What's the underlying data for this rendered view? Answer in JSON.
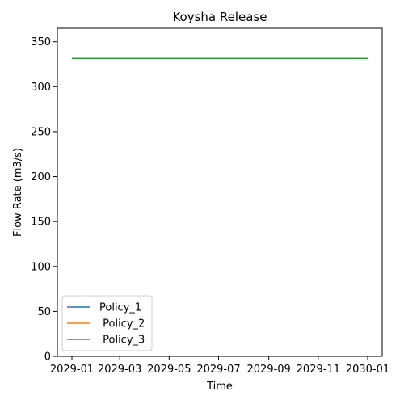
{
  "chart_data": {
    "type": "line",
    "title": "Koysha Release",
    "xlabel": "Time",
    "ylabel": "Flow Rate (m3/s)",
    "x_tick_labels": [
      "2029-01",
      "2029-03",
      "2029-05",
      "2029-07",
      "2029-09",
      "2029-11",
      "2030-01"
    ],
    "x_ticks": [
      "2029-01-01",
      "2029-03-01",
      "2029-05-01",
      "2029-07-01",
      "2029-09-01",
      "2029-11-01",
      "2030-01-01"
    ],
    "x_range": [
      "2029-01-01",
      "2030-01-01"
    ],
    "y_ticks": [
      0,
      50,
      100,
      150,
      200,
      250,
      300,
      350
    ],
    "ylim": [
      0,
      365
    ],
    "grid": false,
    "legend_position": "lower-left",
    "series": [
      {
        "name": "Policy_1",
        "color": "#1f77b4",
        "x": [
          "2029-01-01",
          "2030-01-01"
        ],
        "values": [
          331.5,
          331.5
        ]
      },
      {
        "name": " Policy_2",
        "color": "#ff7f0e",
        "x": [
          "2029-01-01",
          "2030-01-01"
        ],
        "values": [
          331.5,
          331.5
        ]
      },
      {
        "name": " Policy_3",
        "color": "#2ca02c",
        "x": [
          "2029-01-01",
          "2030-01-01"
        ],
        "values": [
          331.5,
          331.5
        ]
      }
    ]
  }
}
